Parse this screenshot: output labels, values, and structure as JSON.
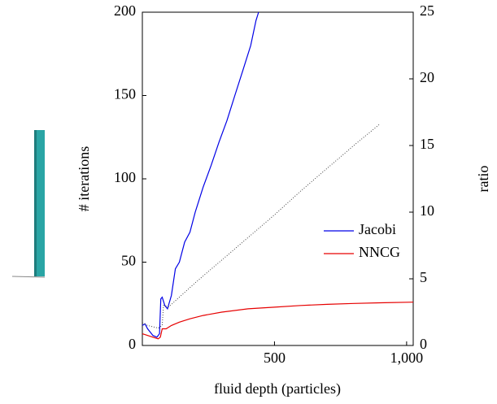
{
  "chart_data": {
    "type": "line",
    "xlabel": "fluid depth (particles)",
    "ylabel": "# iterations",
    "y2label": "ratio",
    "xlim": [
      0,
      1025
    ],
    "xticks": [
      500,
      {
        "value": 1000,
        "label": "1,000"
      }
    ],
    "ylim": [
      0,
      200
    ],
    "yticks": [
      0,
      50,
      100,
      150,
      200
    ],
    "y2lim": [
      0,
      25
    ],
    "y2ticks": [
      0,
      5,
      10,
      15,
      20,
      25
    ],
    "legend": "right",
    "series": [
      {
        "name": "Jacobi",
        "color": "#0000e6",
        "axis": "y",
        "x": [
          0,
          10,
          20,
          40,
          55,
          65,
          70,
          75,
          85,
          95,
          110,
          125,
          140,
          160,
          180,
          200,
          230,
          260,
          290,
          320,
          350,
          380,
          410,
          430,
          440
        ],
        "values": [
          12,
          13,
          10,
          6,
          5,
          7,
          28,
          29,
          24,
          22,
          30,
          46,
          50,
          62,
          68,
          80,
          95,
          108,
          122,
          135,
          150,
          165,
          180,
          195,
          200
        ]
      },
      {
        "name": "NNCG",
        "color": "#e60000",
        "axis": "y",
        "x": [
          0,
          20,
          40,
          60,
          68,
          75,
          90,
          110,
          140,
          180,
          230,
          300,
          400,
          500,
          600,
          700,
          800,
          900,
          1025
        ],
        "values": [
          7,
          6,
          5,
          4,
          5,
          10,
          10,
          12,
          14,
          16,
          18,
          20,
          22,
          23,
          24,
          24.7,
          25.2,
          25.6,
          26
        ]
      },
      {
        "color": "#444444",
        "axis": "y2",
        "dash": true,
        "x": [
          0,
          20,
          40,
          60,
          75,
          80,
          100,
          150,
          200,
          300,
          400,
          500,
          600,
          700,
          800,
          898
        ],
        "values": [
          1.7,
          1.5,
          1.4,
          1.3,
          1.5,
          3,
          2.9,
          3.8,
          4.7,
          6.4,
          8.1,
          9.8,
          11.6,
          13.3,
          15.0,
          16.6
        ]
      }
    ]
  }
}
